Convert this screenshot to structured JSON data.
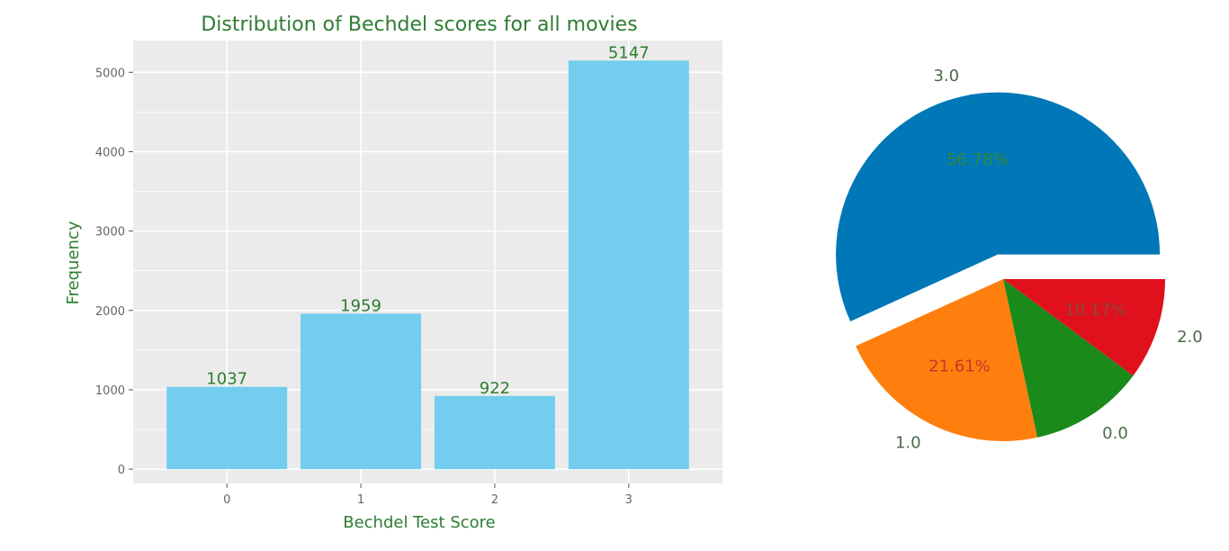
{
  "chart_data": [
    {
      "type": "bar",
      "title": "Distribution of Bechdel scores for all movies",
      "xlabel": "Bechdel Test Score",
      "ylabel": "Frequency",
      "categories": [
        "0",
        "1",
        "2",
        "3"
      ],
      "values": [
        1037,
        1959,
        922,
        5147
      ],
      "data_labels": [
        "1037",
        "1959",
        "922",
        "5147"
      ],
      "ylim": [
        -180,
        5400
      ],
      "yticks": [
        0,
        1000,
        2000,
        3000,
        4000,
        5000
      ],
      "ytick_labels": [
        "0",
        "1000",
        "2000",
        "3000",
        "4000",
        "5000"
      ],
      "grid": true,
      "colors": {
        "bar": "#72cdee",
        "panel_bg": "#ebebeb",
        "grid": "#ffffff",
        "text": "#2e7d32",
        "tick": "#666666"
      }
    },
    {
      "type": "pie",
      "slices": [
        {
          "label": "3.0",
          "value": 56.78,
          "pct": "56.78%",
          "color": "#0077b6",
          "explode": true
        },
        {
          "label": "1.0",
          "value": 21.61,
          "pct": "21.61%",
          "color": "#ff7f0e",
          "explode": false
        },
        {
          "label": "0.0",
          "value": 11.44,
          "pct": "",
          "color": "#1a8a1a",
          "explode": false
        },
        {
          "label": "2.0",
          "value": 10.17,
          "pct": "10.17%",
          "color": "#e0101c",
          "explode": false
        }
      ],
      "colors": {
        "label": "#4a6b4a",
        "pct_on_blue": "#2e8b3a",
        "pct_on_orange": "#c0392b",
        "pct_on_red": "#8b4a3a"
      }
    }
  ]
}
